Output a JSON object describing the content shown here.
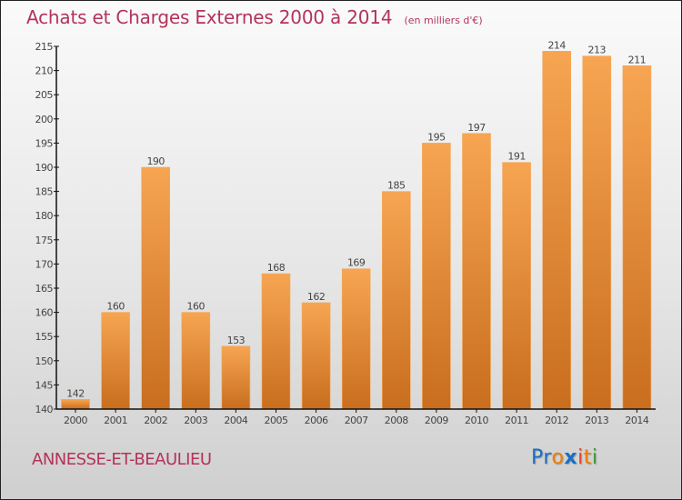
{
  "header": {
    "title": "Achats et Charges Externes 2000 à 2014",
    "unit": "(en milliers d'€)"
  },
  "footer": {
    "town": "ANNESSE-ET-BEAULIEU",
    "logo_letters": [
      {
        "char": "P",
        "color": "#1a6fc4"
      },
      {
        "char": "r",
        "color": "#1a6fc4"
      },
      {
        "char": "o",
        "color": "#f07d00"
      },
      {
        "char": "x",
        "color": "#1a6fc4"
      },
      {
        "char": "i",
        "color": "#e8432e"
      },
      {
        "char": "t",
        "color": "#f07d00"
      },
      {
        "char": "i",
        "color": "#3aa03a"
      }
    ]
  },
  "colors": {
    "title": "#b4335a",
    "bar_top": "#f7a552",
    "bar_bottom": "#c86e1e",
    "axis": "#111111"
  },
  "chart_data": {
    "type": "bar",
    "title": "Achats et Charges Externes 2000 à 2014 (en milliers d'€)",
    "xlabel": "",
    "ylabel": "",
    "categories": [
      "2000",
      "2001",
      "2002",
      "2003",
      "2004",
      "2005",
      "2006",
      "2007",
      "2008",
      "2009",
      "2010",
      "2011",
      "2012",
      "2013",
      "2014"
    ],
    "values": [
      142,
      160,
      190,
      160,
      153,
      168,
      162,
      169,
      185,
      195,
      197,
      191,
      214,
      213,
      211
    ],
    "ylim": [
      140,
      215
    ],
    "yticks": [
      140,
      145,
      150,
      155,
      160,
      165,
      170,
      175,
      180,
      185,
      190,
      195,
      200,
      205,
      210,
      215
    ],
    "grid": false,
    "legend": "none"
  }
}
